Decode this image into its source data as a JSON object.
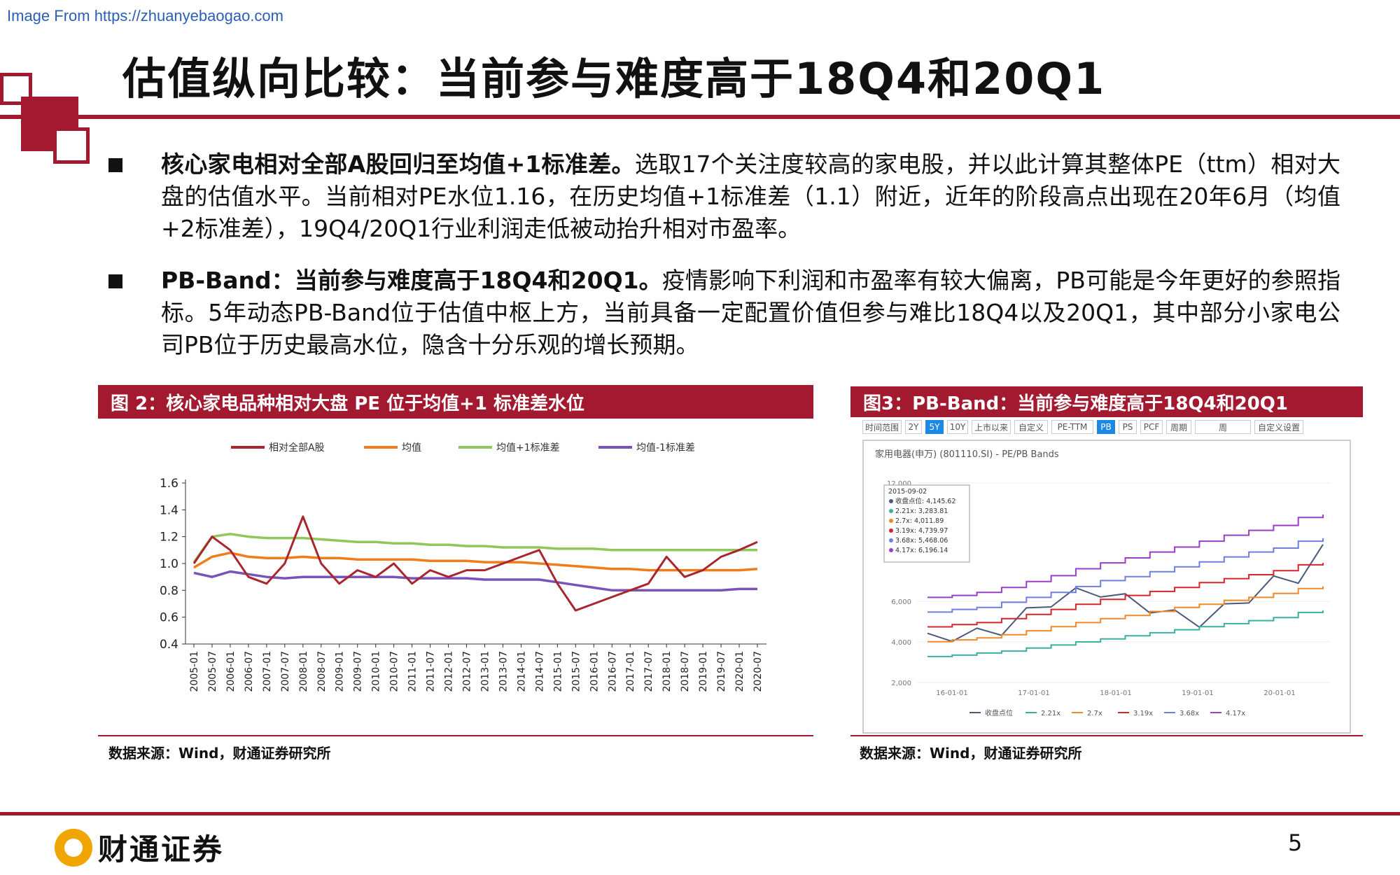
{
  "watermark": "Image From https://zhuanyebaogao.com",
  "title": "估值纵向比较：当前参与难度高于18Q4和20Q1",
  "bullets": [
    {
      "bold": "核心家电相对全部A股回归至均值+1标准差。",
      "text": "选取17个关注度较高的家电股，并以此计算其整体PE（ttm）相对大盘的估值水平。当前相对PE水位1.16，在历史均值+1标准差（1.1）附近，近年的阶段高点出现在20年6月（均值+2标准差），19Q4/20Q1行业利润走低被动抬升相对市盈率。"
    },
    {
      "bold": "PB-Band：当前参与难度高于18Q4和20Q1。",
      "text": "疫情影响下利润和市盈率有较大偏离，PB可能是今年更好的参照指标。5年动态PB-Band位于估值中枢上方，当前具备一定配置价值但参与难比18Q4以及20Q1，其中部分小家电公司PB位于历史最高水位，隐含十分乐观的增长预期。"
    }
  ],
  "fig2": {
    "header": "图 2：核心家电品种相对大盘 PE 位于均值+1 标准差水位",
    "source": "数据来源：Wind，财通证券研究所"
  },
  "fig3": {
    "header": "图3：PB-Band：当前参与难度高于18Q4和20Q1",
    "source": "数据来源：Wind，财通证券研究所",
    "toolbar": [
      "时间范围",
      "2Y",
      "5Y",
      "10Y",
      "上市以来",
      "自定义",
      "PE-TTM",
      "PB",
      "PS",
      "PCF",
      "周期",
      "周",
      "自定义设置"
    ],
    "panel_title": "家用电器(申万) (801110.SI) - PE/PB Bands",
    "tooltip": [
      "2015-09-02",
      "收盘点位: 4,145.62",
      "2.21x: 3,283.81",
      "2.7x: 4,011.89",
      "3.19x: 4,739.97",
      "3.68x: 5,468.06",
      "4.17x: 6,196.14"
    ]
  },
  "chart_data": [
    {
      "type": "line",
      "title": "",
      "ylim": [
        0.4,
        1.6
      ],
      "yticks": [
        "1.6",
        "1.4",
        "1.2",
        "1.0",
        "0.8",
        "0.6",
        "0.4"
      ],
      "categories": [
        "2005-01",
        "2005-07",
        "2006-01",
        "2006-07",
        "2007-01",
        "2007-07",
        "2008-01",
        "2008-07",
        "2009-01",
        "2009-07",
        "2010-01",
        "2010-07",
        "2011-01",
        "2011-07",
        "2012-01",
        "2012-07",
        "2013-01",
        "2013-07",
        "2014-01",
        "2014-07",
        "2015-01",
        "2015-07",
        "2016-01",
        "2016-07",
        "2017-01",
        "2017-07",
        "2018-01",
        "2018-07",
        "2019-01",
        "2019-07",
        "2020-01",
        "2020-07"
      ],
      "series": [
        {
          "name": "相对全部A股",
          "color": "#a8262e",
          "values": [
            1.0,
            1.2,
            1.1,
            0.9,
            0.85,
            1.0,
            1.35,
            1.0,
            0.85,
            0.95,
            0.9,
            1.0,
            0.85,
            0.95,
            0.9,
            0.95,
            0.95,
            1.0,
            1.05,
            1.1,
            0.85,
            0.65,
            0.7,
            0.75,
            0.8,
            0.85,
            1.05,
            0.9,
            0.95,
            1.05,
            1.1,
            1.16
          ]
        },
        {
          "name": "均值",
          "color": "#f07c1a",
          "values": [
            0.97,
            1.05,
            1.08,
            1.05,
            1.04,
            1.04,
            1.05,
            1.04,
            1.04,
            1.03,
            1.03,
            1.03,
            1.03,
            1.02,
            1.02,
            1.02,
            1.01,
            1.01,
            1.01,
            1.0,
            0.99,
            0.98,
            0.97,
            0.96,
            0.96,
            0.95,
            0.95,
            0.95,
            0.95,
            0.95,
            0.95,
            0.96
          ]
        },
        {
          "name": "均值+1标准差",
          "color": "#8fc75a",
          "values": [
            1.01,
            1.2,
            1.22,
            1.2,
            1.19,
            1.19,
            1.19,
            1.18,
            1.17,
            1.16,
            1.16,
            1.15,
            1.15,
            1.14,
            1.14,
            1.13,
            1.13,
            1.12,
            1.12,
            1.12,
            1.11,
            1.11,
            1.11,
            1.1,
            1.1,
            1.1,
            1.1,
            1.1,
            1.1,
            1.1,
            1.1,
            1.1
          ]
        },
        {
          "name": "均值-1标准差",
          "color": "#7b52b8",
          "values": [
            0.93,
            0.9,
            0.94,
            0.92,
            0.9,
            0.89,
            0.9,
            0.9,
            0.9,
            0.9,
            0.9,
            0.9,
            0.89,
            0.89,
            0.89,
            0.89,
            0.88,
            0.88,
            0.88,
            0.88,
            0.86,
            0.84,
            0.82,
            0.8,
            0.8,
            0.8,
            0.8,
            0.8,
            0.8,
            0.8,
            0.81,
            0.81
          ]
        }
      ]
    },
    {
      "type": "line",
      "title": "家用电器(申万) (801110.SI) - PE/PB Bands",
      "yticks": [
        "12,000",
        "6,000",
        "4,000",
        "2,000"
      ],
      "xticks": [
        "16-01-01",
        "17-01-01",
        "18-01-01",
        "19-01-01",
        "20-01-01"
      ],
      "series": [
        {
          "name": "收盘点位",
          "color": "#4a5a7a",
          "values": [
            4150,
            4300,
            4400,
            4600,
            5400,
            6000,
            6400,
            6500,
            6100,
            5700,
            5300,
            5000,
            5600,
            6200,
            7000,
            7200,
            8600
          ]
        },
        {
          "name": "2.21x",
          "color": "#3ab09e",
          "values": [
            3280,
            3350,
            3450,
            3550,
            3700,
            3850,
            4000,
            4150,
            4300,
            4450,
            4600,
            4750,
            4900,
            5050,
            5200,
            5450,
            5550
          ]
        },
        {
          "name": "2.7x",
          "color": "#f0892a",
          "values": [
            4010,
            4100,
            4200,
            4350,
            4550,
            4750,
            4950,
            5150,
            5300,
            5500,
            5700,
            5850,
            6050,
            6200,
            6400,
            6650,
            6750
          ]
        },
        {
          "name": "3.19x",
          "color": "#d6262c",
          "values": [
            4740,
            4850,
            4950,
            5150,
            5350,
            5600,
            5850,
            6100,
            6300,
            6500,
            6700,
            6950,
            7150,
            7350,
            7550,
            7850,
            7950
          ]
        },
        {
          "name": "3.68x",
          "color": "#6f7fe0",
          "values": [
            5470,
            5600,
            5700,
            5950,
            6200,
            6450,
            6750,
            7050,
            7250,
            7500,
            7750,
            8000,
            8250,
            8500,
            8700,
            9050,
            9200
          ]
        },
        {
          "name": "4.17x",
          "color": "#9b3ec8",
          "values": [
            6200,
            6300,
            6450,
            6700,
            7000,
            7300,
            7650,
            7950,
            8200,
            8500,
            8750,
            9050,
            9350,
            9600,
            9850,
            10250,
            10400
          ]
        }
      ]
    }
  ],
  "footer": {
    "company": "财通证券",
    "page": "5"
  }
}
